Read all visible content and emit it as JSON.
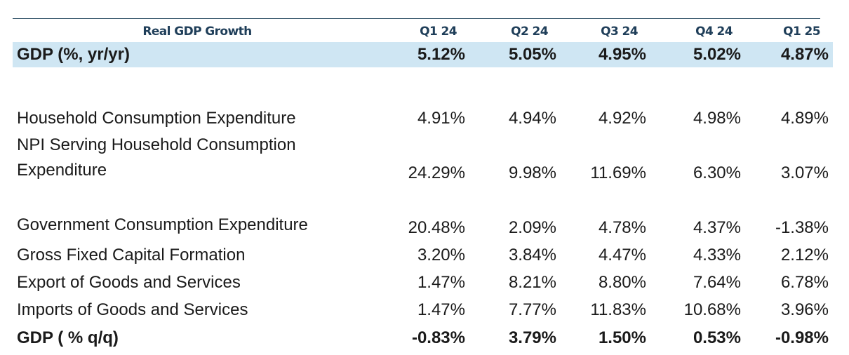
{
  "table": {
    "header": {
      "title": "Real GDP Growth",
      "quarters": [
        "Q1 24",
        "Q2 24",
        "Q3 24",
        "Q4 24",
        "Q1 25"
      ]
    },
    "highlight_row": {
      "label": "GDP (%, yr/yr)",
      "values": [
        "5.12%",
        "5.05%",
        "4.95%",
        "5.02%",
        "4.87%"
      ]
    },
    "rows": [
      {
        "label": "Household Consumption Expenditure",
        "values": [
          "4.91%",
          "4.94%",
          "4.92%",
          "4.98%",
          "4.89%"
        ]
      },
      {
        "label": "NPI Serving Household Consumption Expenditure",
        "values": [
          "24.29%",
          "9.98%",
          "11.69%",
          "6.30%",
          "3.07%"
        ]
      },
      {
        "label": "Government Consumption Expenditure",
        "values": [
          "20.48%",
          "2.09%",
          "4.78%",
          "4.37%",
          "-1.38%"
        ]
      },
      {
        "label": "Gross Fixed Capital Formation",
        "values": [
          "3.20%",
          "3.84%",
          "4.47%",
          "4.33%",
          "2.12%"
        ]
      },
      {
        "label": "Export of Goods and Services",
        "values": [
          "1.47%",
          "8.21%",
          "8.80%",
          "7.64%",
          "6.78%"
        ]
      },
      {
        "label": "Imports of Goods and Services",
        "values": [
          "1.47%",
          "7.77%",
          "11.83%",
          "10.68%",
          "3.96%"
        ]
      }
    ],
    "footer_row": {
      "label": "GDP ( % q/q)",
      "values": [
        "-0.83%",
        "3.79%",
        "1.50%",
        "0.53%",
        "-0.98%"
      ]
    },
    "colors": {
      "header_text": "#1f3e59",
      "highlight_bg": "#cfe6f3",
      "rule": "#2a4d63"
    }
  }
}
